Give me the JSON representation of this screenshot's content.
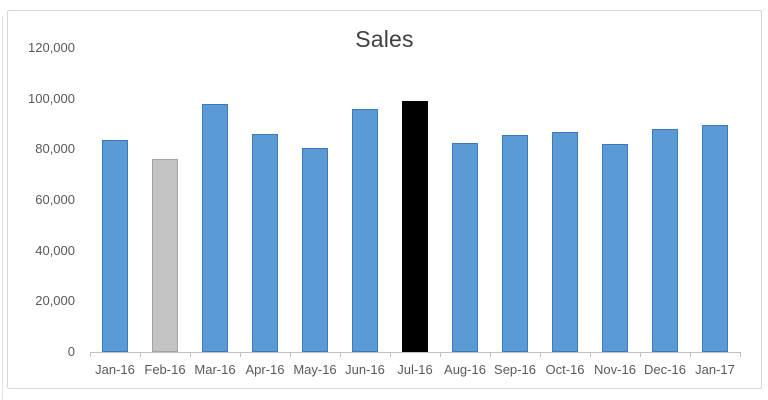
{
  "chart_data": {
    "type": "bar",
    "title": "Sales",
    "categories": [
      "Jan-16",
      "Feb-16",
      "Mar-16",
      "Apr-16",
      "May-16",
      "Jun-16",
      "Jul-16",
      "Aug-16",
      "Sep-16",
      "Oct-16",
      "Nov-16",
      "Dec-16",
      "Jan-17"
    ],
    "values": [
      83500,
      76000,
      98000,
      86000,
      80500,
      96000,
      99000,
      82500,
      85500,
      87000,
      82000,
      88000,
      89500
    ],
    "bar_fill_colors": [
      "#5b9bd5",
      "#c3c3c3",
      "#5b9bd5",
      "#5b9bd5",
      "#5b9bd5",
      "#5b9bd5",
      "#000000",
      "#5b9bd5",
      "#5b9bd5",
      "#5b9bd5",
      "#5b9bd5",
      "#5b9bd5",
      "#5b9bd5"
    ],
    "bar_border_colors": [
      "#3d7ab8",
      "#a3a3a3",
      "#3d7ab8",
      "#3d7ab8",
      "#3d7ab8",
      "#3d7ab8",
      "#000000",
      "#3d7ab8",
      "#3d7ab8",
      "#3d7ab8",
      "#3d7ab8",
      "#3d7ab8",
      "#3d7ab8"
    ],
    "xlabel": "",
    "ylabel": "",
    "ylim": [
      0,
      120000
    ],
    "y_tick_step": 20000,
    "y_tick_labels": [
      "0",
      "20,000",
      "40,000",
      "60,000",
      "80,000",
      "100,000",
      "120,000"
    ],
    "grid": "off",
    "legend": "none"
  },
  "style": {
    "series_blue": "#5b9bd5",
    "muted_gray": "#c3c3c3",
    "highlight_black": "#000000",
    "axis_line_color": "#bfbfbf",
    "tick_label_color": "#595959",
    "title_color": "#404040",
    "frame_border_color": "#d6d6d6",
    "background": "#ffffff"
  }
}
